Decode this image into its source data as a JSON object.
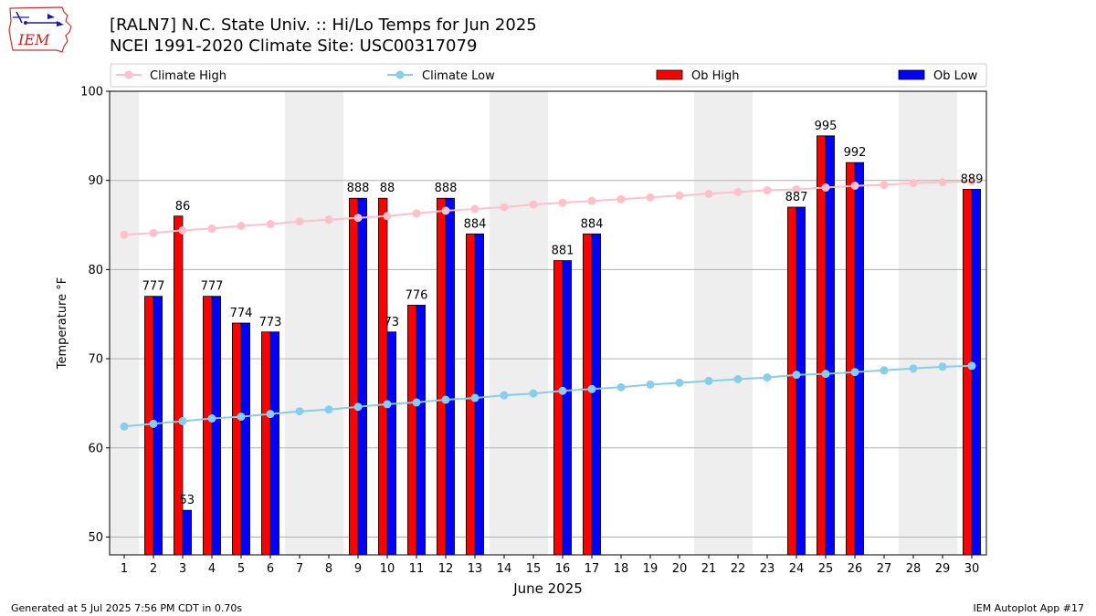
{
  "header": {
    "title_line1": "[RALN7] N.C. State Univ. :: Hi/Lo Temps for Jun 2025",
    "title_line2": "NCEI 1991-2020 Climate Site: USC00317079",
    "logo_text": "IEM"
  },
  "footer": {
    "generated": "Generated at 5 Jul 2025 7:56 PM CDT in 0.70s",
    "app": "IEM Autoplot App #17"
  },
  "colors": {
    "ob_high": "#ff0000",
    "ob_low": "#0000ff",
    "climate_high": "#ffc0cb",
    "climate_low": "#87ceeb",
    "weekend_shade": "#eeeeee",
    "grid": "#b0b0b0"
  },
  "chart_data": {
    "type": "bar",
    "xlabel": "June 2025",
    "ylabel": "Temperature °F",
    "ylim": [
      48,
      100
    ],
    "yticks": [
      50,
      60,
      70,
      80,
      90,
      100
    ],
    "grid": "horizontal",
    "legend_placement": "top",
    "legend": [
      "Climate High",
      "Climate Low",
      "Ob High",
      "Ob Low"
    ],
    "days": [
      1,
      2,
      3,
      4,
      5,
      6,
      7,
      8,
      9,
      10,
      11,
      12,
      13,
      14,
      15,
      16,
      17,
      18,
      19,
      20,
      21,
      22,
      23,
      24,
      25,
      26,
      27,
      28,
      29,
      30
    ],
    "shaded_days": [
      1,
      7,
      8,
      14,
      15,
      21,
      22,
      28,
      29
    ],
    "ob_high": [
      null,
      77,
      86,
      77,
      74,
      73,
      null,
      null,
      88,
      88,
      76,
      88,
      84,
      null,
      null,
      81,
      84,
      null,
      null,
      null,
      null,
      null,
      null,
      87,
      95,
      92,
      null,
      null,
      null,
      89
    ],
    "ob_low": [
      null,
      77,
      53,
      77,
      74,
      73,
      null,
      null,
      88,
      73,
      76,
      88,
      84,
      null,
      null,
      81,
      84,
      null,
      null,
      null,
      null,
      null,
      null,
      87,
      95,
      92,
      null,
      null,
      null,
      89
    ],
    "bar_labels": [
      "",
      "777",
      "86",
      "777",
      "774",
      "773",
      "",
      "",
      "888",
      "88",
      "776",
      "888",
      "884",
      "",
      "",
      "881",
      "884",
      "",
      "",
      "",
      "",
      "",
      "",
      "887",
      "995",
      "992",
      "",
      "",
      "",
      "889"
    ],
    "low_only_labels": [
      "",
      "",
      "53",
      "",
      "",
      "",
      "",
      "",
      "",
      "73",
      "",
      "",
      "",
      "",
      "",
      "",
      "",
      "",
      "",
      "",
      "",
      "",
      "",
      "",
      "",
      "",
      "",
      "",
      "",
      ""
    ],
    "climate_high": [
      83.9,
      84.1,
      84.4,
      84.6,
      84.9,
      85.1,
      85.4,
      85.6,
      85.8,
      86.0,
      86.3,
      86.6,
      86.8,
      87.0,
      87.3,
      87.5,
      87.7,
      87.9,
      88.1,
      88.3,
      88.5,
      88.7,
      88.9,
      89.0,
      89.2,
      89.4,
      89.5,
      89.7,
      89.8,
      89.9
    ],
    "climate_low": [
      62.4,
      62.7,
      63.0,
      63.3,
      63.5,
      63.8,
      64.1,
      64.3,
      64.6,
      64.9,
      65.1,
      65.4,
      65.6,
      65.9,
      66.1,
      66.4,
      66.6,
      66.8,
      67.1,
      67.3,
      67.5,
      67.7,
      67.9,
      68.2,
      68.3,
      68.5,
      68.7,
      68.9,
      69.1,
      69.2
    ]
  }
}
